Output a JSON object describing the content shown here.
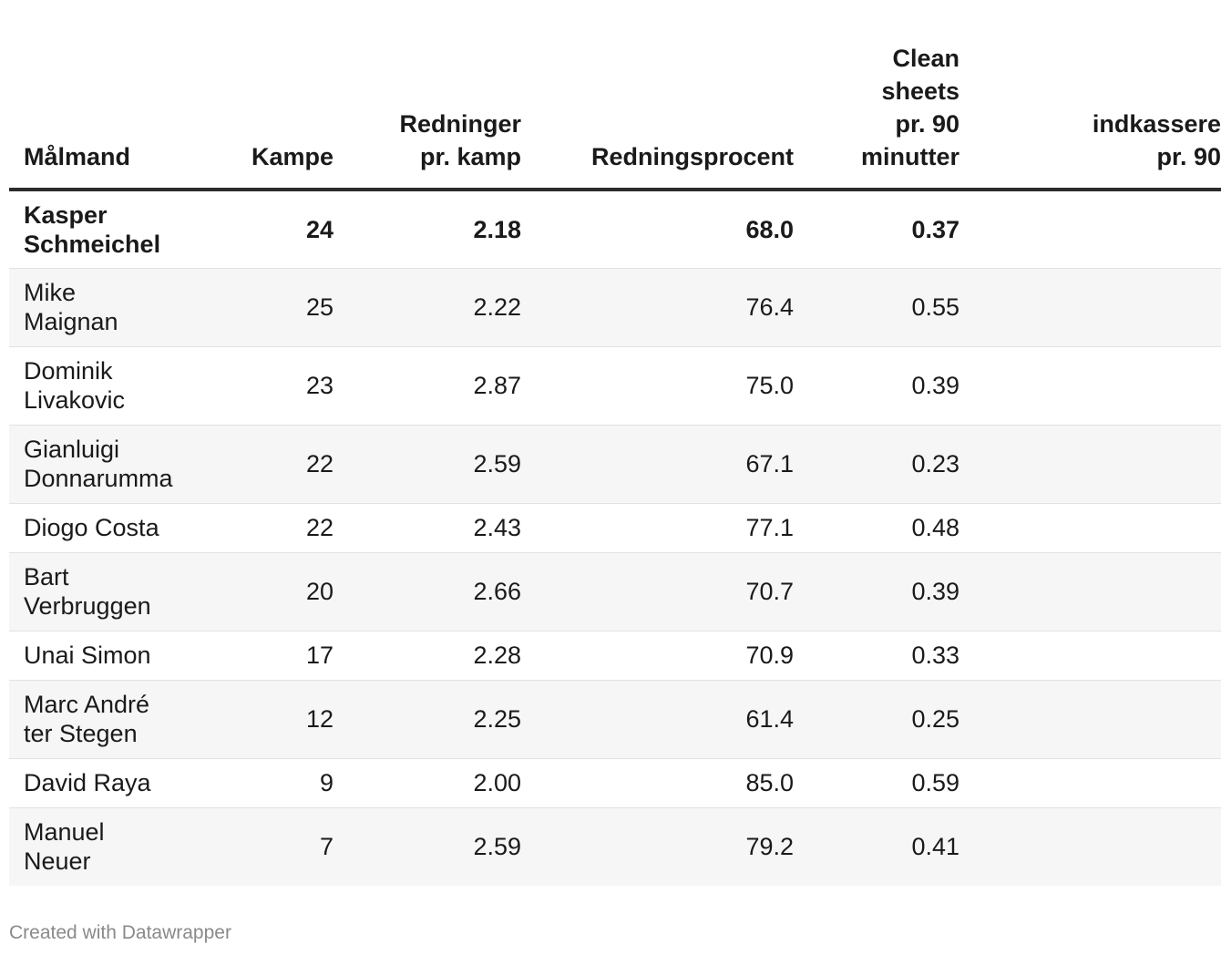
{
  "chart_data": {
    "type": "table",
    "columns": [
      "Målmand",
      "Kampe",
      "Redninger\npr. kamp",
      "Redningsprocent",
      "Clean\nsheets\npr. 90\nminutter",
      "indkassere\npr. 90"
    ],
    "rows": [
      {
        "name": "Kasper\nSchmeichel",
        "kampe": "24",
        "redninger": "2.18",
        "procent": "68.0",
        "clean": "0.37",
        "extra": "",
        "bold": true
      },
      {
        "name": "Mike\nMaignan",
        "kampe": "25",
        "redninger": "2.22",
        "procent": "76.4",
        "clean": "0.55",
        "extra": ""
      },
      {
        "name": "Dominik\nLivakovic",
        "kampe": "23",
        "redninger": "2.87",
        "procent": "75.0",
        "clean": "0.39",
        "extra": ""
      },
      {
        "name": "Gianluigi\nDonnarumma",
        "kampe": "22",
        "redninger": "2.59",
        "procent": "67.1",
        "clean": "0.23",
        "extra": ""
      },
      {
        "name": "Diogo Costa",
        "kampe": "22",
        "redninger": "2.43",
        "procent": "77.1",
        "clean": "0.48",
        "extra": ""
      },
      {
        "name": "Bart\nVerbruggen",
        "kampe": "20",
        "redninger": "2.66",
        "procent": "70.7",
        "clean": "0.39",
        "extra": ""
      },
      {
        "name": "Unai Simon",
        "kampe": "17",
        "redninger": "2.28",
        "procent": "70.9",
        "clean": "0.33",
        "extra": ""
      },
      {
        "name": "Marc André\nter Stegen",
        "kampe": "12",
        "redninger": "2.25",
        "procent": "61.4",
        "clean": "0.25",
        "extra": ""
      },
      {
        "name": "David Raya",
        "kampe": "9",
        "redninger": "2.00",
        "procent": "85.0",
        "clean": "0.59",
        "extra": ""
      },
      {
        "name": "Manuel\nNeuer",
        "kampe": "7",
        "redninger": "2.59",
        "procent": "79.2",
        "clean": "0.41",
        "extra": ""
      }
    ]
  },
  "footer": {
    "credit": "Created with Datawrapper"
  },
  "colors": {
    "header_rule": "#2b2b2b",
    "stripe": "#f6f6f6",
    "row_rule": "#e2e2e2",
    "credit": "#8a8a8a"
  }
}
